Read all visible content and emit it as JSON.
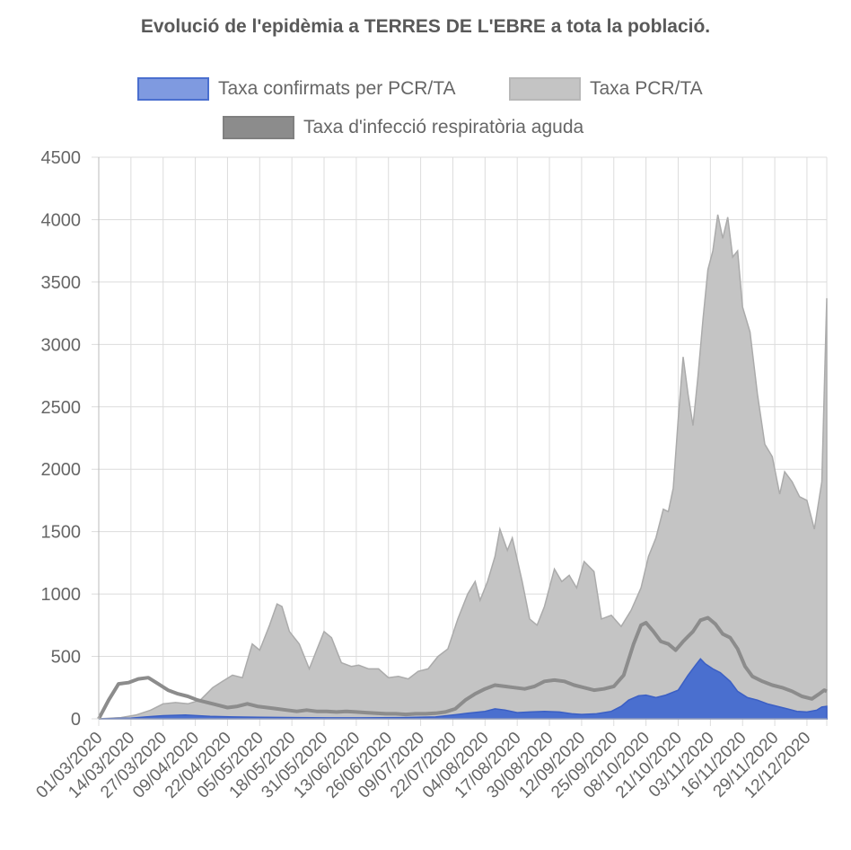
{
  "chart_data": {
    "type": "area",
    "title": "Evolució de l'epidèmia a TERRES DE L'EBRE a tota la població.",
    "xlabel": "",
    "ylabel": "",
    "ylim": [
      0,
      4500
    ],
    "y_ticks": [
      0,
      500,
      1000,
      1500,
      2000,
      2500,
      3000,
      3500,
      4000,
      4500
    ],
    "x_tick_labels": [
      "01/03/2020",
      "14/03/2020",
      "27/03/2020",
      "09/04/2020",
      "22/04/2020",
      "05/05/2020",
      "18/05/2020",
      "31/05/2020",
      "13/06/2020",
      "26/06/2020",
      "09/07/2020",
      "22/07/2020",
      "04/08/2020",
      "17/08/2020",
      "30/08/2020",
      "12/09/2020",
      "25/09/2020",
      "08/10/2020",
      "21/10/2020",
      "03/11/2020",
      "16/11/2020",
      "29/11/2020",
      "12/12/2020"
    ],
    "x_range": [
      "01/03/2020",
      "20/12/2020"
    ],
    "grid": true,
    "legend_position": "top",
    "series": [
      {
        "name": "Taxa confirmats per PCR/TA",
        "fill_color": "#4a6fcf",
        "legend_color": "#7f9ae0",
        "points": [
          [
            "01/03/2020",
            0
          ],
          [
            "14/03/2020",
            5
          ],
          [
            "20/03/2020",
            15
          ],
          [
            "27/03/2020",
            25
          ],
          [
            "05/04/2020",
            30
          ],
          [
            "15/04/2020",
            20
          ],
          [
            "25/04/2020",
            15
          ],
          [
            "05/05/2020",
            12
          ],
          [
            "20/05/2020",
            10
          ],
          [
            "01/06/2020",
            8
          ],
          [
            "15/06/2020",
            8
          ],
          [
            "01/07/2020",
            10
          ],
          [
            "15/07/2020",
            15
          ],
          [
            "22/07/2020",
            30
          ],
          [
            "28/07/2020",
            45
          ],
          [
            "04/08/2020",
            60
          ],
          [
            "08/08/2020",
            80
          ],
          [
            "12/08/2020",
            70
          ],
          [
            "17/08/2020",
            50
          ],
          [
            "22/08/2020",
            55
          ],
          [
            "28/08/2020",
            60
          ],
          [
            "03/09/2020",
            55
          ],
          [
            "08/09/2020",
            40
          ],
          [
            "12/09/2020",
            35
          ],
          [
            "18/09/2020",
            40
          ],
          [
            "24/09/2020",
            60
          ],
          [
            "28/09/2020",
            100
          ],
          [
            "01/10/2020",
            150
          ],
          [
            "05/10/2020",
            185
          ],
          [
            "08/10/2020",
            190
          ],
          [
            "12/10/2020",
            170
          ],
          [
            "16/10/2020",
            190
          ],
          [
            "21/10/2020",
            230
          ],
          [
            "25/10/2020",
            350
          ],
          [
            "28/10/2020",
            430
          ],
          [
            "30/10/2020",
            480
          ],
          [
            "01/11/2020",
            440
          ],
          [
            "04/11/2020",
            400
          ],
          [
            "07/11/2020",
            370
          ],
          [
            "11/11/2020",
            300
          ],
          [
            "14/11/2020",
            220
          ],
          [
            "18/11/2020",
            170
          ],
          [
            "22/11/2020",
            150
          ],
          [
            "26/11/2020",
            120
          ],
          [
            "30/11/2020",
            100
          ],
          [
            "04/12/2020",
            80
          ],
          [
            "08/12/2020",
            60
          ],
          [
            "12/12/2020",
            55
          ],
          [
            "16/12/2020",
            70
          ],
          [
            "18/12/2020",
            95
          ],
          [
            "20/12/2020",
            100
          ]
        ]
      },
      {
        "name": "Taxa PCR/TA",
        "fill_color": "#c4c4c4",
        "legend_color": "#c4c4c4",
        "points": [
          [
            "01/03/2020",
            0
          ],
          [
            "10/03/2020",
            10
          ],
          [
            "16/03/2020",
            30
          ],
          [
            "22/03/2020",
            70
          ],
          [
            "27/03/2020",
            120
          ],
          [
            "01/04/2020",
            130
          ],
          [
            "06/04/2020",
            120
          ],
          [
            "11/04/2020",
            150
          ],
          [
            "16/04/2020",
            250
          ],
          [
            "20/04/2020",
            300
          ],
          [
            "24/04/2020",
            350
          ],
          [
            "28/04/2020",
            330
          ],
          [
            "02/05/2020",
            600
          ],
          [
            "05/05/2020",
            550
          ],
          [
            "09/05/2020",
            750
          ],
          [
            "12/05/2020",
            920
          ],
          [
            "14/05/2020",
            900
          ],
          [
            "17/05/2020",
            700
          ],
          [
            "21/05/2020",
            600
          ],
          [
            "25/05/2020",
            400
          ],
          [
            "28/05/2020",
            550
          ],
          [
            "31/05/2020",
            700
          ],
          [
            "03/06/2020",
            650
          ],
          [
            "07/06/2020",
            450
          ],
          [
            "11/06/2020",
            420
          ],
          [
            "14/06/2020",
            430
          ],
          [
            "18/06/2020",
            400
          ],
          [
            "22/06/2020",
            400
          ],
          [
            "26/06/2020",
            330
          ],
          [
            "30/06/2020",
            340
          ],
          [
            "04/07/2020",
            320
          ],
          [
            "08/07/2020",
            380
          ],
          [
            "12/07/2020",
            400
          ],
          [
            "16/07/2020",
            500
          ],
          [
            "20/07/2020",
            560
          ],
          [
            "24/07/2020",
            800
          ],
          [
            "28/07/2020",
            1000
          ],
          [
            "31/07/2020",
            1100
          ],
          [
            "02/08/2020",
            950
          ],
          [
            "05/08/2020",
            1100
          ],
          [
            "08/08/2020",
            1300
          ],
          [
            "10/08/2020",
            1520
          ],
          [
            "13/08/2020",
            1350
          ],
          [
            "15/08/2020",
            1450
          ],
          [
            "19/08/2020",
            1100
          ],
          [
            "22/08/2020",
            800
          ],
          [
            "25/08/2020",
            750
          ],
          [
            "28/08/2020",
            900
          ],
          [
            "01/09/2020",
            1200
          ],
          [
            "04/09/2020",
            1100
          ],
          [
            "07/09/2020",
            1150
          ],
          [
            "10/09/2020",
            1050
          ],
          [
            "13/09/2020",
            1260
          ],
          [
            "17/09/2020",
            1180
          ],
          [
            "20/09/2020",
            800
          ],
          [
            "24/09/2020",
            830
          ],
          [
            "28/09/2020",
            740
          ],
          [
            "02/10/2020",
            870
          ],
          [
            "06/10/2020",
            1050
          ],
          [
            "09/10/2020",
            1300
          ],
          [
            "12/10/2020",
            1450
          ],
          [
            "15/10/2020",
            1680
          ],
          [
            "17/10/2020",
            1660
          ],
          [
            "19/10/2020",
            1850
          ],
          [
            "21/10/2020",
            2400
          ],
          [
            "23/10/2020",
            2900
          ],
          [
            "25/10/2020",
            2600
          ],
          [
            "27/10/2020",
            2350
          ],
          [
            "29/10/2020",
            2750
          ],
          [
            "31/10/2020",
            3200
          ],
          [
            "02/11/2020",
            3600
          ],
          [
            "04/11/2020",
            3750
          ],
          [
            "06/11/2020",
            4040
          ],
          [
            "08/11/2020",
            3850
          ],
          [
            "10/11/2020",
            4020
          ],
          [
            "12/11/2020",
            3700
          ],
          [
            "14/11/2020",
            3750
          ],
          [
            "16/11/2020",
            3300
          ],
          [
            "19/11/2020",
            3100
          ],
          [
            "22/11/2020",
            2600
          ],
          [
            "25/11/2020",
            2200
          ],
          [
            "28/11/2020",
            2100
          ],
          [
            "01/12/2020",
            1800
          ],
          [
            "03/12/2020",
            1980
          ],
          [
            "06/12/2020",
            1900
          ],
          [
            "09/12/2020",
            1780
          ],
          [
            "12/12/2020",
            1750
          ],
          [
            "15/12/2020",
            1520
          ],
          [
            "18/12/2020",
            1900
          ],
          [
            "20/12/2020",
            3370
          ]
        ]
      },
      {
        "name": "Taxa d'infecció respiratòria aguda",
        "line_color": "#8c8c8c",
        "legend_color": "#8c8c8c",
        "points": [
          [
            "01/03/2020",
            0
          ],
          [
            "05/03/2020",
            150
          ],
          [
            "09/03/2020",
            280
          ],
          [
            "13/03/2020",
            290
          ],
          [
            "17/03/2020",
            320
          ],
          [
            "21/03/2020",
            330
          ],
          [
            "25/03/2020",
            280
          ],
          [
            "29/03/2020",
            230
          ],
          [
            "02/04/2020",
            200
          ],
          [
            "06/04/2020",
            180
          ],
          [
            "10/04/2020",
            150
          ],
          [
            "14/04/2020",
            130
          ],
          [
            "18/04/2020",
            110
          ],
          [
            "22/04/2020",
            90
          ],
          [
            "26/04/2020",
            100
          ],
          [
            "30/04/2020",
            120
          ],
          [
            "04/05/2020",
            100
          ],
          [
            "08/05/2020",
            90
          ],
          [
            "12/05/2020",
            80
          ],
          [
            "16/05/2020",
            70
          ],
          [
            "20/05/2020",
            60
          ],
          [
            "24/05/2020",
            70
          ],
          [
            "28/05/2020",
            60
          ],
          [
            "01/06/2020",
            60
          ],
          [
            "05/06/2020",
            55
          ],
          [
            "09/06/2020",
            60
          ],
          [
            "13/06/2020",
            55
          ],
          [
            "17/06/2020",
            50
          ],
          [
            "21/06/2020",
            45
          ],
          [
            "25/06/2020",
            40
          ],
          [
            "29/06/2020",
            40
          ],
          [
            "03/07/2020",
            35
          ],
          [
            "07/07/2020",
            40
          ],
          [
            "11/07/2020",
            40
          ],
          [
            "15/07/2020",
            45
          ],
          [
            "19/07/2020",
            55
          ],
          [
            "23/07/2020",
            80
          ],
          [
            "27/07/2020",
            150
          ],
          [
            "31/07/2020",
            200
          ],
          [
            "04/08/2020",
            240
          ],
          [
            "08/08/2020",
            270
          ],
          [
            "12/08/2020",
            260
          ],
          [
            "16/08/2020",
            250
          ],
          [
            "20/08/2020",
            240
          ],
          [
            "24/08/2020",
            260
          ],
          [
            "28/08/2020",
            300
          ],
          [
            "01/09/2020",
            310
          ],
          [
            "05/09/2020",
            300
          ],
          [
            "09/09/2020",
            270
          ],
          [
            "13/09/2020",
            250
          ],
          [
            "17/09/2020",
            230
          ],
          [
            "21/09/2020",
            240
          ],
          [
            "25/09/2020",
            260
          ],
          [
            "29/09/2020",
            350
          ],
          [
            "03/10/2020",
            600
          ],
          [
            "06/10/2020",
            750
          ],
          [
            "08/10/2020",
            770
          ],
          [
            "11/10/2020",
            700
          ],
          [
            "14/10/2020",
            620
          ],
          [
            "17/10/2020",
            600
          ],
          [
            "20/10/2020",
            550
          ],
          [
            "23/10/2020",
            620
          ],
          [
            "27/10/2020",
            700
          ],
          [
            "30/10/2020",
            790
          ],
          [
            "02/11/2020",
            810
          ],
          [
            "05/11/2020",
            760
          ],
          [
            "08/11/2020",
            680
          ],
          [
            "11/11/2020",
            650
          ],
          [
            "14/11/2020",
            560
          ],
          [
            "17/11/2020",
            420
          ],
          [
            "20/11/2020",
            340
          ],
          [
            "24/11/2020",
            300
          ],
          [
            "28/11/2020",
            270
          ],
          [
            "02/12/2020",
            250
          ],
          [
            "06/12/2020",
            220
          ],
          [
            "10/12/2020",
            180
          ],
          [
            "14/12/2020",
            160
          ],
          [
            "17/12/2020",
            200
          ],
          [
            "19/12/2020",
            230
          ],
          [
            "20/12/2020",
            220
          ]
        ]
      }
    ]
  }
}
